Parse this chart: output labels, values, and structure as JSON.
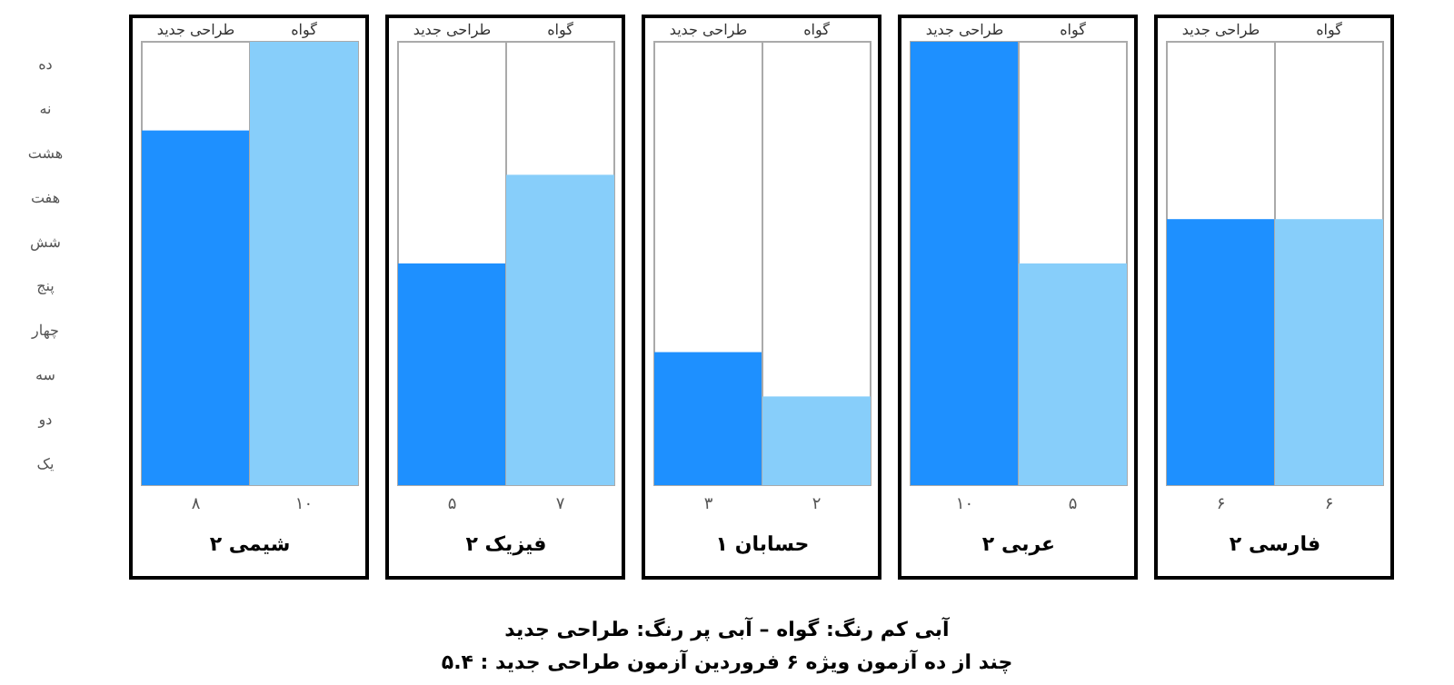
{
  "chart_data": [
    {
      "type": "bar",
      "title": "شیمی ۲",
      "categories": [
        "طراحی جدید",
        "گواه"
      ],
      "values": [
        8,
        10
      ],
      "colors": [
        "#1e90ff",
        "#87cefa"
      ],
      "value_labels": [
        "۸",
        "۱۰"
      ],
      "annotations": [
        "ده",
        "نه",
        "هشت",
        "هفت",
        "شش",
        "پنج",
        "چهار",
        "سه",
        "دو",
        "یک"
      ]
    },
    {
      "type": "bar",
      "title": "فیزیک ۲",
      "categories": [
        "طراحی جدید",
        "گواه"
      ],
      "values": [
        5,
        7
      ],
      "colors": [
        "#1e90ff",
        "#87cefa"
      ],
      "value_labels": [
        "۵",
        "۷"
      ]
    },
    {
      "type": "bar",
      "title": "حسابان ۱",
      "categories": [
        "طراحی جدید",
        "گواه"
      ],
      "values": [
        3,
        2
      ],
      "colors": [
        "#1e90ff",
        "#87cefa"
      ],
      "value_labels": [
        "۳",
        "۲"
      ]
    },
    {
      "type": "bar",
      "title": "عربی ۲",
      "categories": [
        "طراحی جدید",
        "گواه"
      ],
      "values": [
        10,
        5
      ],
      "colors": [
        "#1e90ff",
        "#87cefa"
      ],
      "value_labels": [
        "۱۰",
        "۵"
      ]
    },
    {
      "type": "bar",
      "title": "فارسی ۲",
      "categories": [
        "طراحی جدید",
        "گواه"
      ],
      "values": [
        6,
        6
      ],
      "colors": [
        "#1e90ff",
        "#87cefa"
      ],
      "value_labels": [
        "۶",
        "۶"
      ],
      "annotations": [
        "آبی کم رنگ: گواه – آبی پر رنگ: طراحی جدید",
        "چند از ده آزمون ویژه ۶ فروردین آزمون طراحی جدید : ۵.۴"
      ]
    }
  ]
}
